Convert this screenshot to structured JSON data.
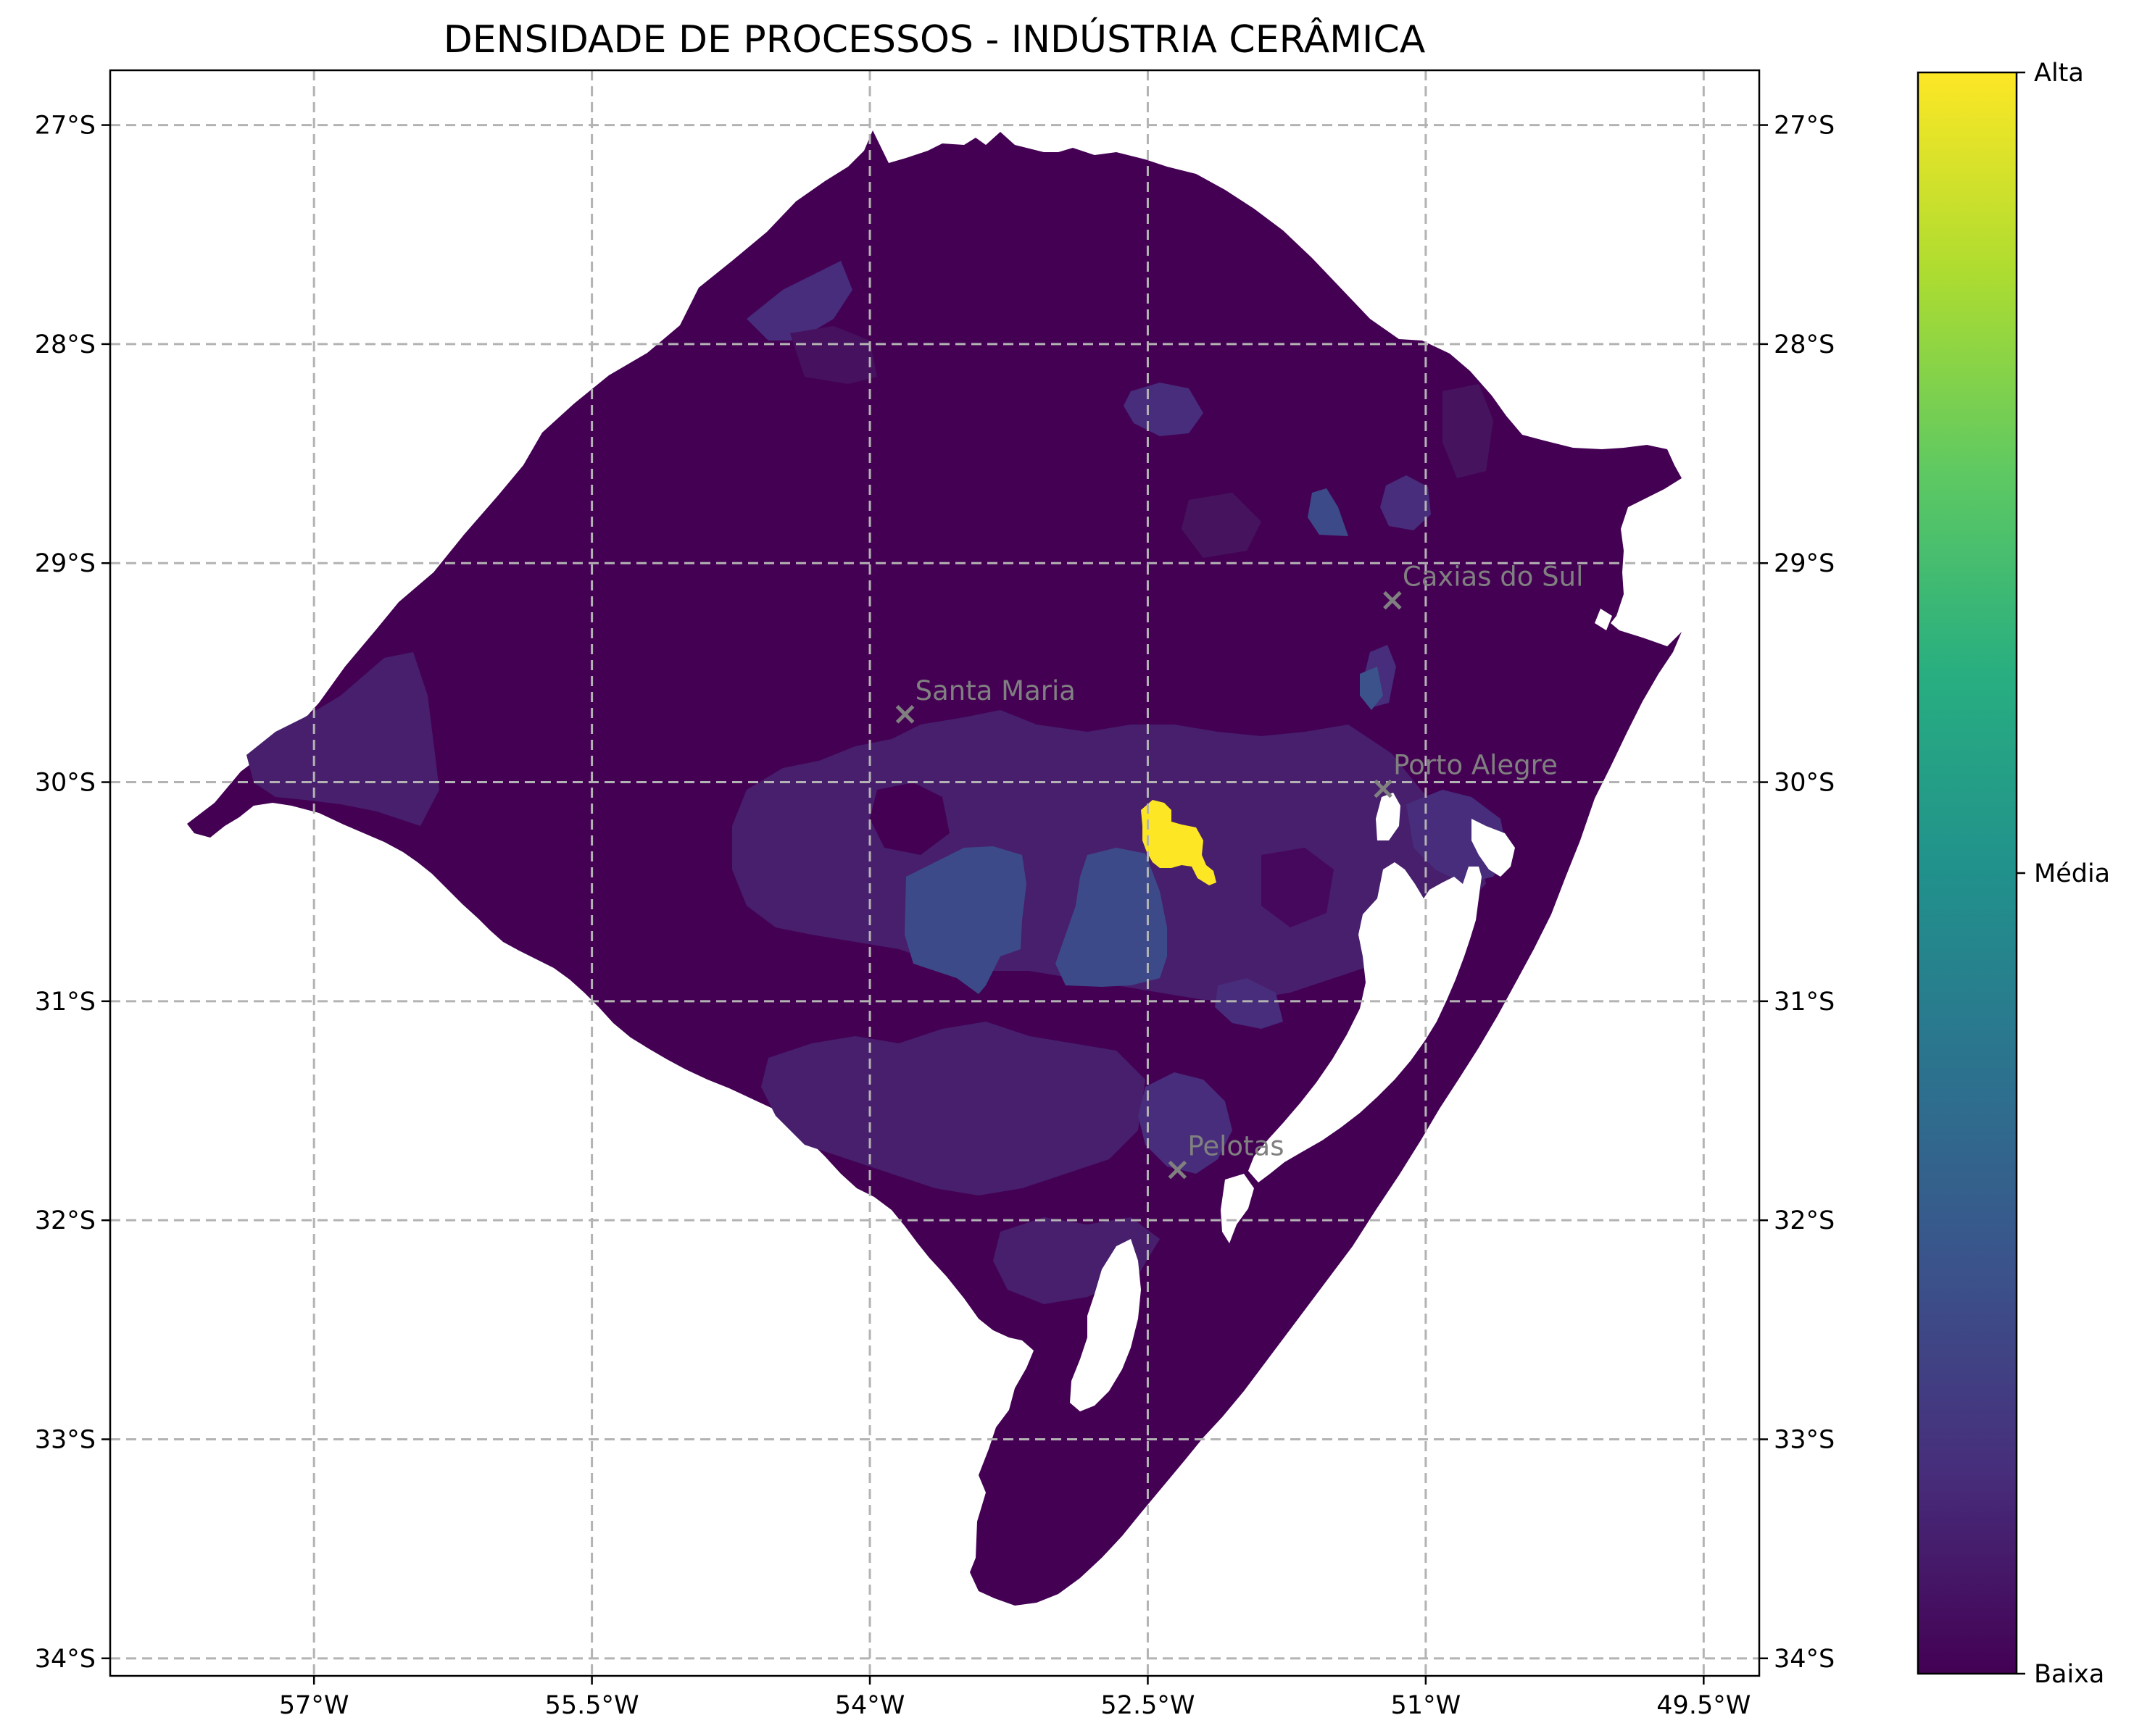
{
  "title": "DENSIDADE DE PROCESSOS - INDÚSTRIA CERÂMICA",
  "map": {
    "lon_range": [
      -58.1,
      -49.2
    ],
    "lat_range": [
      -34.08,
      -26.75
    ],
    "lon_ticks": [
      {
        "value": -57.0,
        "label": "57°W"
      },
      {
        "value": -55.5,
        "label": "55.5°W"
      },
      {
        "value": -54.0,
        "label": "54°W"
      },
      {
        "value": -52.5,
        "label": "52.5°W"
      },
      {
        "value": -51.0,
        "label": "51°W"
      },
      {
        "value": -49.5,
        "label": "49.5°W"
      }
    ],
    "lat_ticks": [
      {
        "value": -27,
        "label": "27°S"
      },
      {
        "value": -28,
        "label": "28°S"
      },
      {
        "value": -29,
        "label": "29°S"
      },
      {
        "value": -30,
        "label": "30°S"
      },
      {
        "value": -31,
        "label": "31°S"
      },
      {
        "value": -32,
        "label": "32°S"
      },
      {
        "value": -33,
        "label": "33°S"
      },
      {
        "value": -34,
        "label": "34°S"
      }
    ],
    "grid": true,
    "cities": [
      {
        "name": "Caxias do Sul",
        "lon": -51.18,
        "lat": -29.17
      },
      {
        "name": "Santa Maria",
        "lon": -53.81,
        "lat": -29.69
      },
      {
        "name": "Porto Alegre",
        "lon": -51.23,
        "lat": -30.03
      },
      {
        "name": "Pelotas",
        "lon": -52.34,
        "lat": -31.77
      }
    ],
    "hotspot_label": ""
  },
  "colorbar": {
    "colors": [
      "#440154",
      "#472d7b",
      "#3b528b",
      "#2c728e",
      "#21918c",
      "#28ae80",
      "#5ec962",
      "#addc30",
      "#fde725"
    ],
    "ticks": [
      {
        "fraction": 1.0,
        "label": "Alta"
      },
      {
        "fraction": 0.5,
        "label": "Média"
      },
      {
        "fraction": 0.0,
        "label": "Baixa"
      }
    ]
  },
  "colors": {
    "base": "#440154",
    "region_dark": "#46085c",
    "region_mid": "#472d7b",
    "region_blue": "#3d4a89",
    "hotspot": "#fde725",
    "water": "#ffffff"
  }
}
